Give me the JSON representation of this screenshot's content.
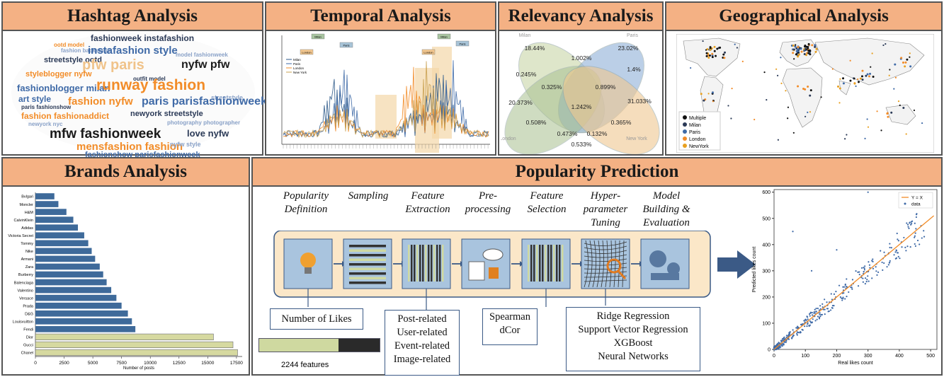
{
  "panels": {
    "hashtag": "Hashtag Analysis",
    "temporal": "Temporal Analysis",
    "relevancy": "Relevancy Analysis",
    "geo": "Geographical Analysis",
    "brands": "Brands Analysis",
    "popularity": "Popularity Prediction"
  },
  "wordcloud": [
    {
      "t": "fashionweek instafashion",
      "c": "#2b3a57"
    },
    {
      "t": "ootd model",
      "c": "#f28c28"
    },
    {
      "t": "fashion backstage",
      "c": "#8aa2c8"
    },
    {
      "t": "instafashion style",
      "c": "#3f6aa7"
    },
    {
      "t": "model fashionweek",
      "c": "#8aa2c8"
    },
    {
      "t": "streetstyle ootd",
      "c": "#2b3a57"
    },
    {
      "t": "pfw paris",
      "c": "#f0c38a"
    },
    {
      "t": "nyfw pfw",
      "c": "#1a1a1a"
    },
    {
      "t": "styleblogger nyfw",
      "c": "#f28c28"
    },
    {
      "t": "outfit model",
      "c": "#2b3a57"
    },
    {
      "t": "fashionblogger milan",
      "c": "#3f6aa7"
    },
    {
      "t": "runway fashion",
      "c": "#f28c28"
    },
    {
      "t": "art style",
      "c": "#3f6aa7"
    },
    {
      "t": "paris fashionshow",
      "c": "#2b3a57"
    },
    {
      "t": "streetstyle",
      "c": "#8aa2c8"
    },
    {
      "t": "fashion nyfw",
      "c": "#f28c28"
    },
    {
      "t": "paris parisfashionweek",
      "c": "#3f6aa7"
    },
    {
      "t": "fashion fashionaddict",
      "c": "#f28c28"
    },
    {
      "t": "newyork streetstyle",
      "c": "#2b3a57"
    },
    {
      "t": "newyork nyc",
      "c": "#8aa2c8"
    },
    {
      "t": "photography photographer",
      "c": "#8aa2c8"
    },
    {
      "t": "mfw fashionweek",
      "c": "#1a1a1a"
    },
    {
      "t": "love nyfw",
      "c": "#2b3a57"
    },
    {
      "t": "mensfashion fashion",
      "c": "#f28c28"
    },
    {
      "t": "nyfw style",
      "c": "#8aa2c8"
    },
    {
      "t": "fashionshow parisfashionweek",
      "c": "#3f6aa7"
    }
  ],
  "temporal": {
    "legend": [
      "Milan",
      "Paris",
      "London",
      "New York"
    ],
    "colors": [
      "#2e5a8a",
      "#3f6aa7",
      "#f28c28",
      "#c9a050"
    ],
    "event_tags": [
      "Milan",
      "Paris",
      "London",
      "Milan",
      "Paris",
      "London"
    ]
  },
  "venn": {
    "labels": [
      "Milan",
      "Paris",
      "London",
      "New York"
    ],
    "values": [
      "18.44%",
      "1.002%",
      "23.02%",
      "0.245%",
      "1.4%",
      "0.325%",
      "0.899%",
      "20.373%",
      "1.242%",
      "31.033%",
      "0.508%",
      "0.365%",
      "0.473%",
      "0.132%",
      "0.533%"
    ]
  },
  "geo": {
    "legend": [
      {
        "label": "Multiple",
        "color": "#111111"
      },
      {
        "label": "Milan",
        "color": "#2b3a57"
      },
      {
        "label": "Paris",
        "color": "#3f6aa7"
      },
      {
        "label": "London",
        "color": "#f28c28"
      },
      {
        "label": "NewYork",
        "color": "#e8a020"
      }
    ]
  },
  "brands": {
    "categories": [
      "Bvlgari",
      "Moncler",
      "H&M",
      "CalvinKlein",
      "Adidas",
      "Victoria Secret",
      "Tommy",
      "Nike",
      "Armani",
      "Zara",
      "Burberry",
      "Balenciaga",
      "Valentino",
      "Versace",
      "Prada",
      "D&G",
      "Louisvuitton",
      "Fendi",
      "Dior",
      "Gucci",
      "Chanel"
    ],
    "values": [
      1650,
      2000,
      2700,
      3300,
      3700,
      4250,
      4600,
      4900,
      5200,
      5600,
      5900,
      6200,
      6600,
      7050,
      7500,
      8050,
      8400,
      8700,
      15500,
      17200,
      17600
    ],
    "highlight_from": 18,
    "xticks": [
      "0",
      "2500",
      "5000",
      "7500",
      "10000",
      "12500",
      "15000",
      "17500"
    ],
    "xlabel": "Number of posts"
  },
  "pipeline": {
    "steps": [
      "Popularity\nDefinition",
      "Sampling",
      "Feature\nExtraction",
      "Pre-\nprocessing",
      "Feature\nSelection",
      "Hyper-\nparameter\nTuning",
      "Model\nBuilding &\nEvaluation"
    ],
    "likes_box": "Number of Likes",
    "features_label": "2244 features",
    "feature_types": [
      "Post-related",
      "User-related",
      "Event-related",
      "Image-related"
    ],
    "selection": [
      "Spearman",
      "dCor"
    ],
    "models": [
      "Ridge Regression",
      "Support Vector Regression",
      "XGBoost",
      "Neural Networks"
    ]
  },
  "scatter": {
    "ylabel": "Predicted likes count",
    "xlabel": "Real likes count",
    "legend": [
      "Y = X",
      "data"
    ],
    "xticks": [
      "0",
      "100",
      "200",
      "300",
      "400",
      "500"
    ],
    "yticks": [
      "0",
      "100",
      "200",
      "300",
      "400",
      "500",
      "600"
    ]
  }
}
